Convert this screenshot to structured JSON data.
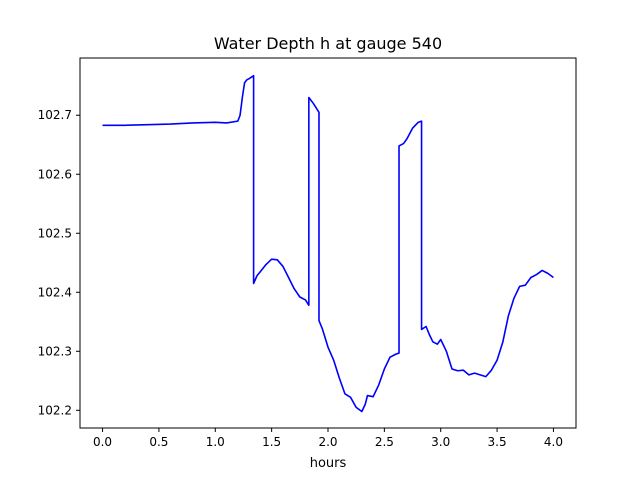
{
  "chart_data": {
    "type": "line",
    "title": "Water Depth h at gauge 540",
    "xlabel": "hours",
    "ylabel": "",
    "xlim": [
      -0.2,
      4.2
    ],
    "ylim": [
      102.17,
      102.797
    ],
    "xticks": [
      0.0,
      0.5,
      1.0,
      1.5,
      2.0,
      2.5,
      3.0,
      3.5,
      4.0
    ],
    "xtick_labels": [
      "0.0",
      "0.5",
      "1.0",
      "1.5",
      "2.0",
      "2.5",
      "3.0",
      "3.5",
      "4.0"
    ],
    "yticks": [
      102.2,
      102.3,
      102.4,
      102.5,
      102.6,
      102.7
    ],
    "ytick_labels": [
      "102.2",
      "102.3",
      "102.4",
      "102.5",
      "102.6",
      "102.7"
    ],
    "grid": false,
    "series": [
      {
        "color": "#0000ff",
        "x": [
          0.0,
          0.2,
          0.4,
          0.6,
          0.8,
          1.0,
          1.1,
          1.2,
          1.22,
          1.24,
          1.26,
          1.28,
          1.3,
          1.34,
          1.34,
          1.37,
          1.4,
          1.45,
          1.5,
          1.55,
          1.6,
          1.65,
          1.7,
          1.75,
          1.8,
          1.83,
          1.83,
          1.87,
          1.92,
          1.92,
          1.95,
          2.0,
          2.05,
          2.1,
          2.15,
          2.2,
          2.25,
          2.3,
          2.33,
          2.35,
          2.4,
          2.45,
          2.5,
          2.55,
          2.6,
          2.63,
          2.63,
          2.67,
          2.7,
          2.75,
          2.8,
          2.83,
          2.83,
          2.87,
          2.9,
          2.93,
          2.97,
          3.0,
          3.05,
          3.1,
          3.15,
          3.2,
          3.25,
          3.3,
          3.35,
          3.4,
          3.45,
          3.5,
          3.55,
          3.6,
          3.65,
          3.7,
          3.75,
          3.8,
          3.85,
          3.9,
          3.95,
          4.0
        ],
        "y": [
          102.683,
          102.683,
          102.684,
          102.685,
          102.687,
          102.688,
          102.687,
          102.69,
          102.7,
          102.73,
          102.755,
          102.76,
          102.762,
          102.767,
          102.415,
          102.428,
          102.435,
          102.447,
          102.456,
          102.455,
          102.444,
          102.425,
          102.406,
          102.392,
          102.387,
          102.378,
          102.73,
          102.72,
          102.705,
          102.352,
          102.338,
          102.307,
          102.285,
          102.255,
          102.228,
          102.222,
          102.205,
          102.198,
          102.21,
          102.225,
          102.223,
          102.243,
          102.27,
          102.29,
          102.295,
          102.297,
          102.648,
          102.652,
          102.66,
          102.678,
          102.688,
          102.69,
          102.337,
          102.342,
          102.328,
          102.316,
          102.312,
          102.32,
          102.3,
          102.27,
          102.267,
          102.268,
          102.26,
          102.263,
          102.26,
          102.257,
          102.268,
          102.285,
          102.315,
          102.36,
          102.39,
          102.41,
          102.412,
          102.425,
          102.43,
          102.437,
          102.432,
          102.425
        ]
      }
    ]
  }
}
